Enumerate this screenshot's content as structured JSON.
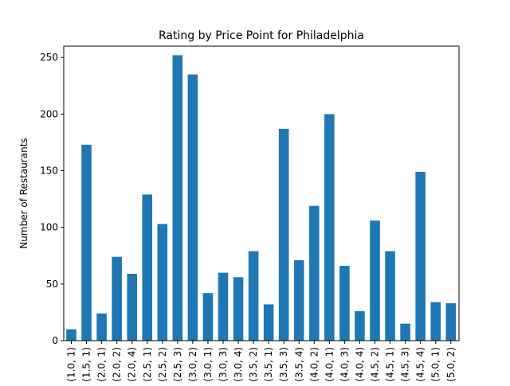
{
  "chart_data": {
    "type": "bar",
    "title": "Rating by Price Point for Philadelphia",
    "xlabel": "",
    "ylabel": "Number of Restaurants",
    "ylim": [
      0,
      260
    ],
    "yticks": [
      0,
      50,
      100,
      150,
      200,
      250
    ],
    "grid": false,
    "legend": "none",
    "bar_color": "#1f77b4",
    "categories": [
      "(1.0, 1)",
      "(1.5, 1)",
      "(2.0, 1)",
      "(2.0, 2)",
      "(2.0, 4)",
      "(2.5, 1)",
      "(2.5, 2)",
      "(2.5, 3)",
      "(3.0, 2)",
      "(3.0, 1)",
      "(3.0, 3)",
      "(3.0, 4)",
      "(3.5, 2)",
      "(3.5, 1)",
      "(3.5, 3)",
      "(3.5, 4)",
      "(4.0, 2)",
      "(4.0, 1)",
      "(4.0, 3)",
      "(4.0, 4)",
      "(4.5, 2)",
      "(4.5, 1)",
      "(4.5, 3)",
      "(4.5, 4)",
      "(5.0, 1)",
      "(5.0, 2)"
    ],
    "values": [
      10,
      173,
      24,
      74,
      59,
      129,
      103,
      252,
      235,
      42,
      60,
      56,
      79,
      32,
      187,
      71,
      119,
      200,
      66,
      26,
      106,
      79,
      15,
      149,
      34,
      33
    ]
  }
}
